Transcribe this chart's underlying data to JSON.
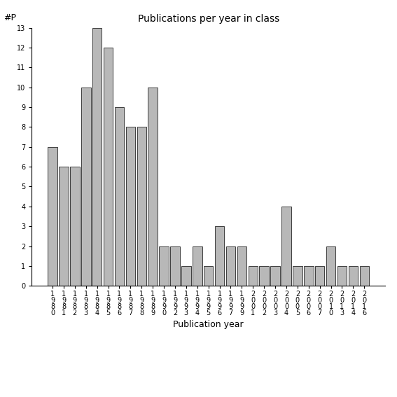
{
  "title": "Publications per year in class",
  "xlabel": "Publication year",
  "ylabel": "#P",
  "categories": [
    "1\n9\n8\n0",
    "1\n9\n8\n1",
    "1\n9\n8\n2",
    "1\n9\n8\n3",
    "1\n9\n8\n4",
    "1\n9\n8\n5",
    "1\n9\n8\n6",
    "1\n9\n8\n7",
    "1\n9\n8\n8",
    "1\n9\n8\n9",
    "1\n9\n9\n0",
    "1\n9\n9\n2",
    "1\n9\n9\n3",
    "1\n9\n9\n4",
    "1\n9\n9\n5",
    "1\n9\n9\n6",
    "1\n9\n9\n7",
    "1\n9\n9\n9",
    "2\n0\n0\n1",
    "2\n0\n0\n2",
    "2\n0\n0\n3",
    "2\n0\n0\n4",
    "2\n0\n0\n5",
    "2\n0\n0\n6",
    "2\n0\n0\n7",
    "2\n0\n1\n0",
    "2\n0\n1\n3",
    "2\n0\n1\n4",
    "2\n0\n1\n6"
  ],
  "values": [
    7,
    6,
    6,
    10,
    13,
    12,
    9,
    8,
    8,
    10,
    2,
    2,
    1,
    2,
    1,
    3,
    2,
    2,
    1,
    1,
    1,
    4,
    1,
    1,
    1,
    2,
    1,
    1,
    1
  ],
  "bar_color": "#b8b8b8",
  "bar_edgecolor": "#000000",
  "background_color": "#ffffff",
  "ylim": [
    0,
    13
  ],
  "yticks": [
    0,
    1,
    2,
    3,
    4,
    5,
    6,
    7,
    8,
    9,
    10,
    11,
    12,
    13
  ],
  "title_fontsize": 10,
  "xlabel_fontsize": 9,
  "ylabel_fontsize": 9,
  "tick_fontsize": 7
}
